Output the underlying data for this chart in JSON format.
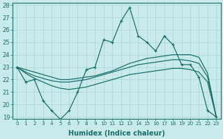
{
  "xlabel": "Humidex (Indice chaleur)",
  "background_color": "#c8eaea",
  "grid_color": "#afd8d8",
  "line_color": "#1a6e6e",
  "x": [
    0,
    1,
    2,
    3,
    4,
    5,
    6,
    7,
    8,
    9,
    10,
    11,
    12,
    13,
    14,
    15,
    16,
    17,
    18,
    19,
    20,
    21,
    22,
    23
  ],
  "line_main": [
    23.0,
    21.8,
    22.0,
    20.3,
    19.5,
    18.8,
    19.5,
    21.0,
    22.8,
    23.0,
    25.2,
    25.0,
    26.7,
    27.8,
    25.5,
    25.0,
    24.3,
    25.5,
    24.8,
    23.2,
    23.2,
    22.2,
    19.5,
    19.0
  ],
  "line_upper": [
    23.0,
    22.8,
    22.6,
    22.4,
    22.2,
    22.0,
    22.0,
    22.1,
    22.2,
    22.3,
    22.5,
    22.7,
    23.0,
    23.3,
    23.5,
    23.7,
    23.8,
    23.9,
    24.0,
    24.0,
    24.0,
    23.8,
    22.5,
    19.0
  ],
  "line_mid": [
    23.0,
    22.6,
    22.3,
    22.1,
    21.9,
    21.8,
    21.8,
    21.9,
    22.0,
    22.2,
    22.4,
    22.6,
    22.8,
    23.0,
    23.2,
    23.3,
    23.4,
    23.5,
    23.6,
    23.6,
    23.5,
    23.3,
    22.2,
    19.0
  ],
  "line_lower": [
    23.0,
    22.5,
    22.1,
    21.8,
    21.5,
    21.3,
    21.2,
    21.3,
    21.4,
    21.6,
    21.8,
    22.0,
    22.2,
    22.4,
    22.5,
    22.6,
    22.7,
    22.8,
    22.9,
    22.9,
    22.8,
    22.6,
    21.8,
    19.0
  ],
  "ylim": [
    19,
    28
  ],
  "xlim": [
    -0.5,
    23.5
  ],
  "yticks": [
    19,
    20,
    21,
    22,
    23,
    24,
    25,
    26,
    27,
    28
  ],
  "xticks": [
    0,
    1,
    2,
    3,
    4,
    5,
    6,
    7,
    8,
    9,
    10,
    11,
    12,
    13,
    14,
    15,
    16,
    17,
    18,
    19,
    20,
    21,
    22,
    23
  ]
}
